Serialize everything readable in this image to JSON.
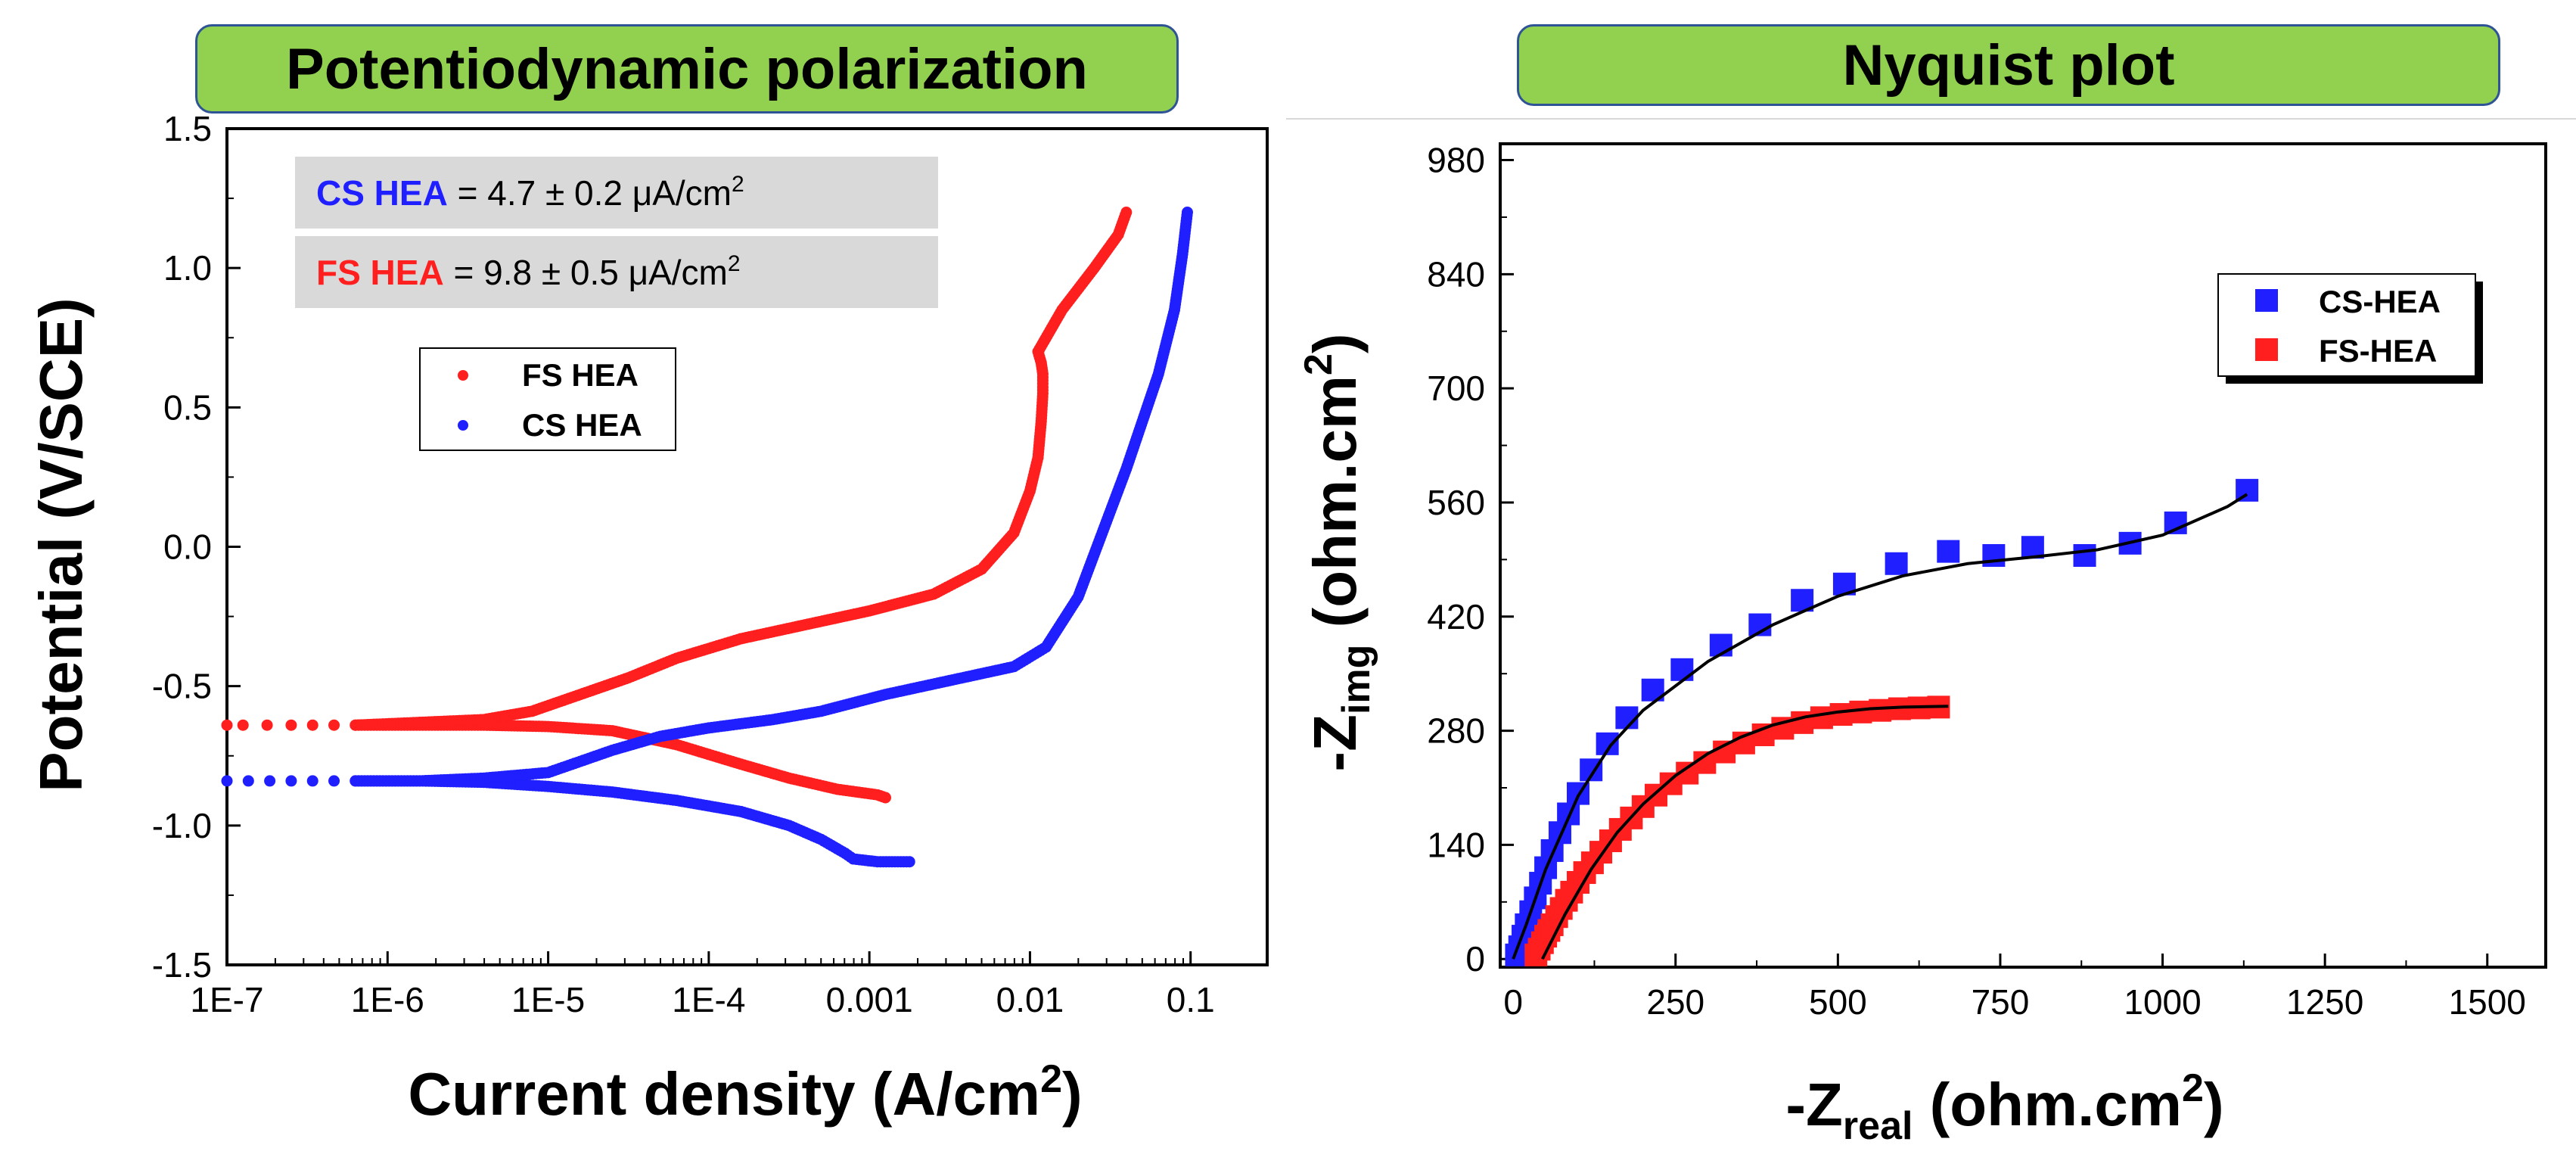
{
  "banners": {
    "left": "Potentiodynamic polarization",
    "right": "Nyquist plot"
  },
  "colors": {
    "red": "#ff1f1f",
    "blue": "#1f1fff",
    "banner": "#92d050",
    "banner_border": "#2f5496",
    "annot_bg": "#d9d9d9"
  },
  "chart_data": [
    {
      "type": "scatter",
      "title": "Potentiodynamic polarization",
      "xlabel": "Current density (A/cm",
      "xlabel_sup": "2",
      "xlabel_close": ")",
      "ylabel": "Potential (V/SCE)",
      "xscale": "log",
      "xlim": [
        1e-07,
        0.3
      ],
      "ylim": [
        -1.5,
        1.5
      ],
      "xticks": [
        1e-07,
        1e-06,
        1e-05,
        0.0001,
        0.001,
        0.01,
        0.1
      ],
      "xtick_labels": [
        "1E-7",
        "1E-6",
        "1E-5",
        "1E-4",
        "0.001",
        "0.01",
        "0.1"
      ],
      "yticks": [
        -1.5,
        -1.0,
        -0.5,
        0.0,
        0.5,
        1.0,
        1.5
      ],
      "ytick_labels": [
        "-1.5",
        "-1.0",
        "-0.5",
        "0.0",
        "0.5",
        "1.0",
        "1.5"
      ],
      "annotations": [
        {
          "series": "CS HEA",
          "name": "CS HEA",
          "text": " = 4.7 ± 0.2 μA/cm",
          "sup": "2"
        },
        {
          "series": "FS HEA",
          "name": "FS HEA",
          "text": " = 9.8 ± 0.5 μA/cm",
          "sup": "2"
        }
      ],
      "legend": {
        "position": "upper-left",
        "entries": [
          "FS HEA",
          "CS HEA"
        ]
      },
      "series": [
        {
          "name": "FS HEA",
          "color": "#ff1f1f",
          "branches": [
            {
              "log_current": [
                -7,
                -6.9,
                -6.6,
                -6.2,
                -5.8,
                -5.4,
                -5.0,
                -4.6,
                -4.2,
                -3.8,
                -3.5,
                -3.2,
                -2.95,
                -2.9,
                -2.9
              ],
              "potential": [
                -0.64,
                -0.64,
                -0.64,
                -0.64,
                -0.64,
                -0.64,
                -0.645,
                -0.66,
                -0.71,
                -0.78,
                -0.83,
                -0.87,
                -0.89,
                -0.9,
                -0.9
              ]
            },
            {
              "log_current": [
                -6.2,
                -5.8,
                -5.4,
                -5.1,
                -4.8,
                -4.5,
                -4.2,
                -3.8,
                -3.4,
                -3.0,
                -2.6,
                -2.3,
                -2.1,
                -2.0,
                -1.95,
                -1.93,
                -1.92,
                -1.92,
                -1.93,
                -1.95,
                -1.8,
                -1.6,
                -1.45,
                -1.4
              ],
              "potential": [
                -0.64,
                -0.63,
                -0.62,
                -0.59,
                -0.53,
                -0.47,
                -0.4,
                -0.33,
                -0.28,
                -0.23,
                -0.17,
                -0.08,
                0.05,
                0.2,
                0.32,
                0.45,
                0.55,
                0.62,
                0.66,
                0.7,
                0.85,
                1.0,
                1.12,
                1.2
              ]
            }
          ]
        },
        {
          "name": "CS HEA",
          "color": "#1f1fff",
          "branches": [
            {
              "log_current": [
                -7,
                -6.6,
                -6.2,
                -5.8,
                -5.4,
                -5.0,
                -4.6,
                -4.2,
                -3.8,
                -3.5,
                -3.3,
                -3.15,
                -3.1,
                -2.95,
                -2.75
              ],
              "potential": [
                -0.84,
                -0.84,
                -0.84,
                -0.84,
                -0.845,
                -0.86,
                -0.88,
                -0.91,
                -0.95,
                -1.0,
                -1.05,
                -1.1,
                -1.12,
                -1.13,
                -1.13
              ]
            },
            {
              "log_current": [
                -6.2,
                -5.8,
                -5.4,
                -5.0,
                -4.6,
                -4.3,
                -4.0,
                -3.6,
                -3.3,
                -2.9,
                -2.5,
                -2.1,
                -1.9,
                -1.7,
                -1.55,
                -1.4,
                -1.3,
                -1.2,
                -1.1,
                -1.05,
                -1.02
              ],
              "potential": [
                -0.84,
                -0.84,
                -0.83,
                -0.81,
                -0.73,
                -0.68,
                -0.65,
                -0.62,
                -0.59,
                -0.53,
                -0.48,
                -0.43,
                -0.36,
                -0.18,
                0.05,
                0.28,
                0.45,
                0.62,
                0.85,
                1.05,
                1.2
              ]
            }
          ]
        }
      ]
    },
    {
      "type": "scatter",
      "title": "Nyquist plot",
      "xlabel_prefix": "-Z",
      "xlabel_sub": "real",
      "xlabel_suffix": " (ohm.cm",
      "xlabel_sup": "2",
      "xlabel_close": ")",
      "ylabel_prefix": "-Z",
      "ylabel_sub": "img",
      "ylabel_suffix": " (ohm.cm",
      "ylabel_sup": "2",
      "ylabel_close": ")",
      "xlim": [
        -20,
        1590
      ],
      "ylim": [
        -10,
        1000
      ],
      "xticks": [
        0,
        250,
        500,
        750,
        1000,
        1250,
        1500
      ],
      "xtick_labels": [
        "0",
        "250",
        "500",
        "750",
        "1000",
        "1250",
        "1500"
      ],
      "yticks": [
        0,
        140,
        280,
        420,
        560,
        700,
        840,
        980
      ],
      "ytick_labels": [
        "0",
        "140",
        "280",
        "420",
        "560",
        "700",
        "840",
        "980"
      ],
      "legend": {
        "position": "upper-right",
        "entries": [
          "CS-HEA",
          "FS-HEA"
        ]
      },
      "series": [
        {
          "name": "CS-HEA",
          "color": "#1f1fff",
          "x": [
            5,
            10,
            15,
            20,
            27,
            34,
            42,
            50,
            60,
            72,
            85,
            100,
            120,
            145,
            175,
            215,
            260,
            320,
            380,
            445,
            510,
            590,
            670,
            740,
            800,
            880,
            950,
            1020,
            1130
          ],
          "y": [
            5,
            15,
            28,
            42,
            58,
            75,
            93,
            112,
            133,
            155,
            178,
            203,
            232,
            264,
            296,
            330,
            355,
            385,
            410,
            440,
            460,
            485,
            500,
            495,
            505,
            495,
            510,
            535,
            575
          ],
          "fit_x": [
            0,
            20,
            50,
            100,
            150,
            200,
            300,
            400,
            500,
            600,
            700,
            800,
            900,
            1000,
            1100,
            1130
          ],
          "fit_y": [
            0,
            42,
            110,
            200,
            262,
            305,
            365,
            410,
            445,
            470,
            485,
            493,
            502,
            520,
            555,
            570
          ]
        },
        {
          "name": "FS-HEA",
          "color": "#ff1f1f",
          "x": [
            35,
            40,
            45,
            50,
            55,
            60,
            67,
            74,
            82,
            90,
            100,
            110,
            122,
            135,
            150,
            165,
            182,
            200,
            220,
            243,
            268,
            295,
            325,
            355,
            385,
            415,
            445,
            475,
            505,
            535,
            565,
            595,
            625,
            655
          ],
          "y": [
            5,
            12,
            20,
            28,
            35,
            42,
            52,
            62,
            72,
            82,
            94,
            106,
            118,
            131,
            145,
            159,
            173,
            187,
            201,
            215,
            228,
            241,
            254,
            265,
            275,
            283,
            290,
            296,
            300,
            303,
            305,
            307,
            308,
            309
          ],
          "fit_x": [
            45,
            80,
            120,
            160,
            200,
            250,
            300,
            350,
            400,
            450,
            500,
            550,
            600,
            670
          ],
          "fit_y": [
            0,
            55,
            110,
            155,
            190,
            225,
            252,
            272,
            287,
            297,
            303,
            307,
            309,
            310
          ]
        }
      ]
    }
  ]
}
